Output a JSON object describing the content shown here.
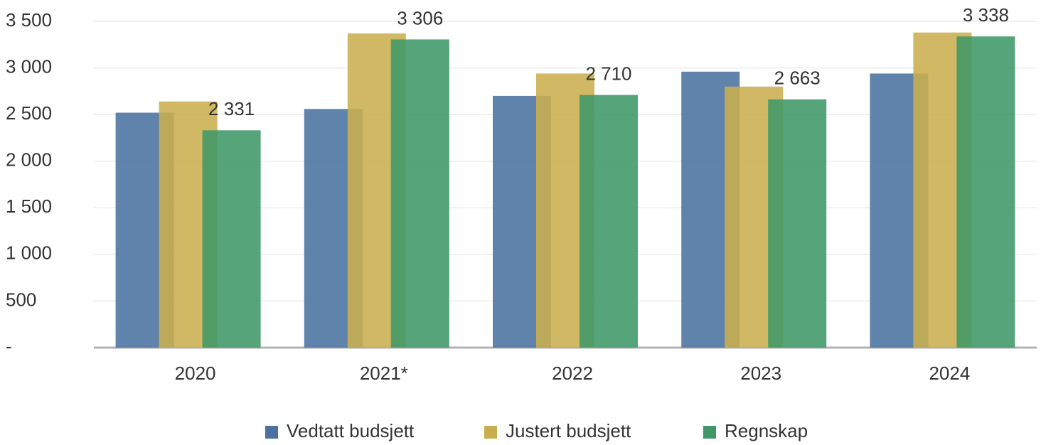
{
  "chart_data": {
    "type": "bar",
    "categories": [
      "2020",
      "2021*",
      "2022",
      "2023",
      "2024"
    ],
    "series": [
      {
        "name": "Vedtatt budsjett",
        "color": "#4a72a0",
        "values": [
          2520,
          2560,
          2700,
          2960,
          2940
        ]
      },
      {
        "name": "Justert budsjett",
        "color": "#c9ae4f",
        "values": [
          2640,
          3370,
          2940,
          2800,
          3380
        ]
      },
      {
        "name": "Regnskap",
        "color": "#3f9768",
        "values": [
          2331,
          3306,
          2710,
          2663,
          3338
        ],
        "value_labels": [
          "2 331",
          "3 306",
          "2 710",
          "2 663",
          "3 338"
        ]
      }
    ],
    "ylim": [
      0,
      3500
    ],
    "yticks": [
      {
        "value": 0,
        "label": "-"
      },
      500,
      {
        "value": 1000,
        "label": "1 000"
      },
      {
        "value": 1500,
        "label": "1 500"
      },
      {
        "value": 2000,
        "label": "2 000"
      },
      {
        "value": 2500,
        "label": "2 500"
      },
      {
        "value": 3000,
        "label": "3 000"
      },
      {
        "value": 3500,
        "label": "3 500"
      }
    ],
    "grid": true,
    "legend": "bottom"
  }
}
